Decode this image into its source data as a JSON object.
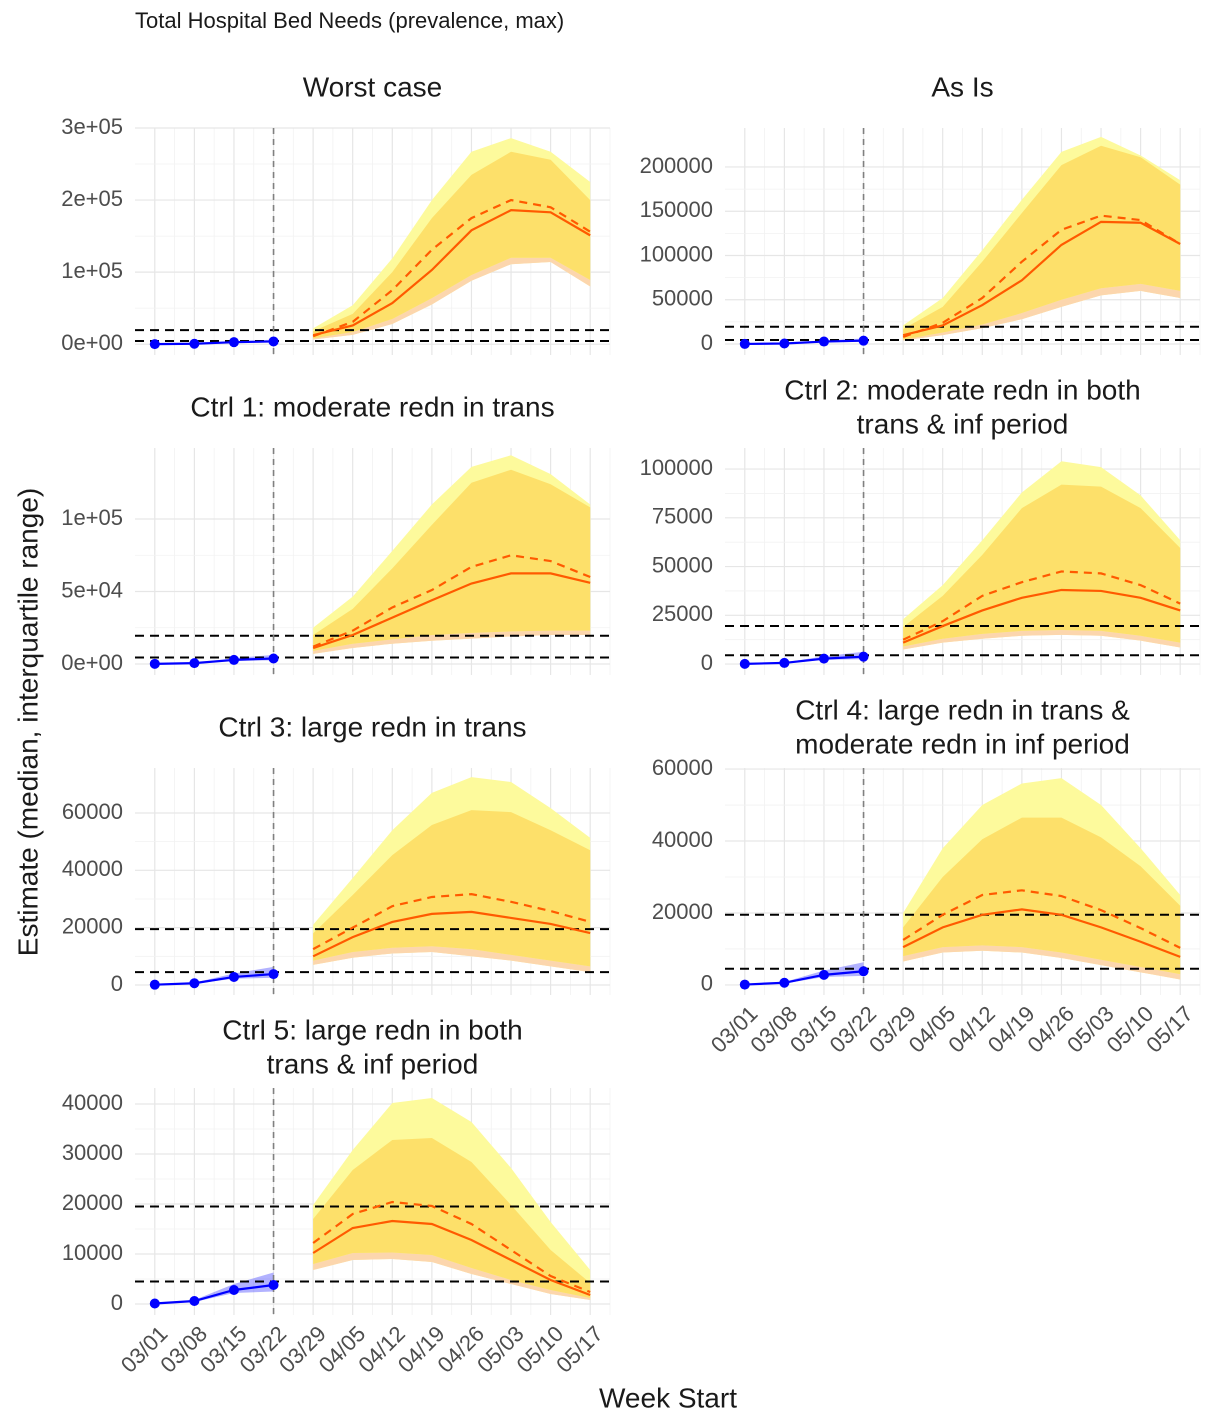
{
  "chart_data": {
    "type": "line",
    "title": "Total Hospital Bed Needs (prevalence, max)",
    "x_label": "Week Start",
    "y_label": "Estimate (median, interquartile range)",
    "categories": [
      "03/01",
      "03/08",
      "03/15",
      "03/22",
      "03/29",
      "04/05",
      "04/12",
      "04/19",
      "04/26",
      "05/03",
      "05/10",
      "05/17"
    ],
    "grid": true,
    "vline": "03/22",
    "hlines": [
      4500,
      19500
    ],
    "colors": {
      "observed": "#0000ff",
      "median": "#ff5a00",
      "outer": "#fdfa9c",
      "inner": "#fde06a",
      "lower_strip": "#fcd6ad",
      "reference": "#000000",
      "cutoff": "#808080",
      "grid": "#e6e6e6"
    },
    "observed": {
      "x": [
        "03/01",
        "03/08",
        "03/15",
        "03/22"
      ],
      "values": [
        100,
        600,
        2800,
        3800
      ],
      "lower": [
        0,
        400,
        2200,
        2500
      ],
      "upper": [
        200,
        800,
        4000,
        6300
      ]
    },
    "panels": [
      {
        "title": [
          "Worst case"
        ],
        "ylim": [
          -15000,
          300000
        ],
        "yticks": [
          {
            "value": 0,
            "label": "0e+00"
          },
          {
            "value": 100000,
            "label": "1e+05"
          },
          {
            "value": 200000,
            "label": "2e+05"
          },
          {
            "value": 300000,
            "label": "3e+05"
          }
        ],
        "x_labels": false,
        "x": [
          "03/29",
          "04/05",
          "04/12",
          "04/19",
          "04/26",
          "05/03",
          "05/10",
          "05/17"
        ],
        "median": [
          12500,
          26000,
          57000,
          103000,
          158000,
          186000,
          183000,
          151000
        ],
        "dashed": [
          11000,
          31000,
          75000,
          131000,
          175000,
          200000,
          190000,
          156000
        ],
        "outer_upper": [
          22000,
          54000,
          119000,
          200000,
          267000,
          286000,
          267000,
          225000
        ],
        "inner_upper": [
          18000,
          42000,
          100000,
          175000,
          235000,
          267000,
          256000,
          200000
        ],
        "inner_lower": [
          8000,
          17000,
          35000,
          64000,
          96000,
          120000,
          120000,
          89000
        ],
        "outer_lower": [
          6500,
          13000,
          28000,
          55000,
          88000,
          111000,
          114000,
          80000
        ]
      },
      {
        "title": [
          "As Is"
        ],
        "ylim": [
          -12400,
          244000
        ],
        "yticks": [
          0,
          50000,
          100000,
          150000,
          200000
        ],
        "x_labels": false,
        "x": [
          "03/29",
          "04/05",
          "04/12",
          "04/19",
          "04/26",
          "05/03",
          "05/10",
          "05/17"
        ],
        "median": [
          10000,
          21000,
          44000,
          72000,
          112000,
          138000,
          137000,
          113000
        ],
        "dashed": [
          8000,
          24000,
          52000,
          93000,
          129000,
          145000,
          140000,
          113000
        ],
        "outer_upper": [
          21000,
          52000,
          106000,
          163000,
          217000,
          234000,
          213000,
          185000
        ],
        "inner_upper": [
          17000,
          42000,
          93000,
          148000,
          202000,
          224000,
          211000,
          180000
        ],
        "inner_lower": [
          5000,
          13000,
          22000,
          35000,
          50000,
          63000,
          68000,
          60000
        ],
        "outer_lower": [
          4000,
          10000,
          18000,
          28000,
          42000,
          55000,
          60000,
          52000
        ]
      },
      {
        "title": [
          "Ctrl 1: moderate redn in trans"
        ],
        "ylim": [
          -7600,
          149000
        ],
        "yticks": [
          {
            "value": 0,
            "label": "0e+00"
          },
          {
            "value": 50000,
            "label": "5e+04"
          },
          {
            "value": 100000,
            "label": "1e+05"
          }
        ],
        "x_labels": false,
        "x": [
          "03/29",
          "04/05",
          "04/12",
          "04/19",
          "04/26",
          "05/03",
          "05/10",
          "05/17"
        ],
        "median": [
          11000,
          20000,
          32000,
          44000,
          55500,
          62500,
          62500,
          56000
        ],
        "dashed": [
          12000,
          23000,
          39000,
          51000,
          67000,
          75000,
          71000,
          60000
        ],
        "outer_upper": [
          25000,
          46500,
          78000,
          110000,
          136000,
          144000,
          131000,
          110000
        ],
        "inner_upper": [
          20000,
          38000,
          66000,
          96000,
          125000,
          134000,
          124000,
          108000
        ],
        "inner_lower": [
          9000,
          14000,
          17000,
          20000,
          21500,
          22500,
          23000,
          23000
        ],
        "outer_lower": [
          7000,
          11000,
          14000,
          16000,
          17500,
          19000,
          20000,
          20000
        ]
      },
      {
        "title": [
          "Ctrl 2: moderate redn in both",
          "trans & inf period"
        ],
        "ylim": [
          -5600,
          110800
        ],
        "yticks": [
          0,
          25000,
          50000,
          75000,
          100000
        ],
        "x_labels": false,
        "x": [
          "03/29",
          "04/05",
          "04/12",
          "04/19",
          "04/26",
          "05/03",
          "05/10",
          "05/17"
        ],
        "median": [
          11000,
          19500,
          27500,
          34000,
          38000,
          37500,
          34000,
          27500
        ],
        "dashed": [
          12500,
          22000,
          35000,
          42000,
          47500,
          46500,
          40500,
          31000
        ],
        "outer_upper": [
          23000,
          40500,
          63500,
          88000,
          104000,
          101000,
          86500,
          63500
        ],
        "inner_upper": [
          19000,
          35000,
          56000,
          80000,
          92000,
          91000,
          80000,
          59500
        ],
        "inner_lower": [
          9000,
          13000,
          15500,
          17000,
          17500,
          17000,
          14500,
          11000
        ],
        "outer_lower": [
          7500,
          11000,
          13000,
          14500,
          15000,
          14500,
          12000,
          8500
        ]
      },
      {
        "title": [
          "Ctrl 3: large redn in trans"
        ],
        "ylim": [
          -3500,
          75700
        ],
        "yticks": [
          0,
          20000,
          40000,
          60000
        ],
        "x_labels": false,
        "x": [
          "03/29",
          "04/05",
          "04/12",
          "04/19",
          "04/26",
          "05/03",
          "05/10",
          "05/17"
        ],
        "median": [
          10000,
          16700,
          22000,
          24800,
          25500,
          23400,
          21300,
          18100
        ],
        "dashed": [
          12500,
          20000,
          27500,
          30700,
          31700,
          29000,
          25800,
          22000
        ],
        "outer_upper": [
          21000,
          37300,
          54000,
          67000,
          72500,
          70800,
          61700,
          51300
        ],
        "inner_upper": [
          18000,
          31400,
          45300,
          55800,
          61000,
          60300,
          54000,
          47000
        ],
        "inner_lower": [
          8500,
          11500,
          13000,
          13500,
          12500,
          10500,
          8500,
          6500
        ],
        "outer_lower": [
          7000,
          9500,
          11000,
          11500,
          10000,
          8500,
          6500,
          4500
        ]
      },
      {
        "title": [
          "Ctrl 4: large redn in trans &",
          "moderate redn in inf period"
        ],
        "ylim": [
          -2800,
          60300
        ],
        "yticks": [
          0,
          20000,
          40000,
          60000
        ],
        "x_labels": true,
        "x": [
          "03/29",
          "04/05",
          "04/12",
          "04/19",
          "04/26",
          "05/03",
          "05/10",
          "05/17"
        ],
        "median": [
          10500,
          16000,
          19500,
          21000,
          19500,
          16000,
          12000,
          7800
        ],
        "dashed": [
          12500,
          19500,
          25000,
          26300,
          24700,
          20800,
          15800,
          10300
        ],
        "outer_upper": [
          20000,
          38000,
          50000,
          56000,
          57500,
          50000,
          38000,
          25000
        ],
        "inner_upper": [
          16000,
          30000,
          40500,
          46500,
          46500,
          41000,
          33000,
          22000
        ],
        "inner_lower": [
          8000,
          10500,
          11000,
          10500,
          9000,
          7000,
          5000,
          3000
        ],
        "outer_lower": [
          6500,
          9000,
          9500,
          9000,
          7500,
          5500,
          3500,
          1500
        ]
      },
      {
        "title": [
          "Ctrl 5: large redn in both",
          "trans & inf period"
        ],
        "ylim": [
          -2200,
          43200
        ],
        "yticks": [
          0,
          10000,
          20000,
          30000,
          40000
        ],
        "x_labels": true,
        "x": [
          "03/29",
          "04/05",
          "04/12",
          "04/19",
          "04/26",
          "05/03",
          "05/10",
          "05/17"
        ],
        "median": [
          10200,
          15200,
          16600,
          16000,
          12800,
          8800,
          4800,
          1800
        ],
        "dashed": [
          12200,
          18000,
          20400,
          19600,
          16000,
          10800,
          5600,
          2400
        ],
        "outer_upper": [
          19800,
          30800,
          40200,
          41200,
          36400,
          27200,
          16400,
          6800
        ],
        "inner_upper": [
          17000,
          26800,
          32800,
          33200,
          28400,
          19800,
          10800,
          4200
        ],
        "inner_lower": [
          8000,
          10200,
          10300,
          9800,
          7200,
          4800,
          2800,
          1200
        ],
        "outer_lower": [
          6800,
          8800,
          9000,
          8400,
          6000,
          4000,
          2000,
          800
        ]
      }
    ]
  }
}
